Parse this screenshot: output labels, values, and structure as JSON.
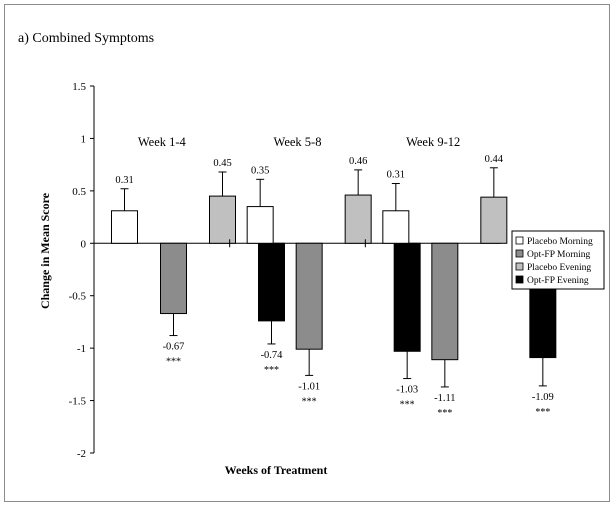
{
  "chart_data": {
    "type": "bar",
    "title": "a) Combined Symptoms",
    "xlabel": "Weeks of Treatment",
    "ylabel": "Change in Mean Score",
    "ylim": [
      -2,
      1.5
    ],
    "yticks": [
      "1.5",
      "1",
      "0.5",
      "0",
      "-0.5",
      "-1",
      "-1.5",
      "-2"
    ],
    "ytick_values": [
      1.5,
      1,
      0.5,
      0,
      -0.5,
      -1,
      -1.5,
      -2
    ],
    "categories": [
      "Week 1-4",
      "Week 5-8",
      "Week 9-12"
    ],
    "grid": false,
    "legend_position": "right",
    "series": [
      {
        "name": "Placebo Morning",
        "color": "#ffffff",
        "values": [
          0.31,
          0.35,
          0.31
        ],
        "value_labels": [
          "0.31",
          "0.35",
          "0.31"
        ],
        "error": [
          0.21,
          0.26,
          0.26
        ],
        "significance": [
          "",
          "",
          ""
        ]
      },
      {
        "name": "Opt-FP Morning",
        "color": "#8c8c8c",
        "values": [
          -0.67,
          -1.01,
          -1.11
        ],
        "value_labels": [
          "-0.67",
          "-1.01",
          "-1.11"
        ],
        "error": [
          0.21,
          0.25,
          0.26
        ],
        "significance": [
          "***",
          "***",
          "***"
        ]
      },
      {
        "name": "Placebo Evening",
        "color": "#c0c0c0",
        "values": [
          0.45,
          0.46,
          0.44
        ],
        "value_labels": [
          "0.45",
          "0.46",
          "0.44"
        ],
        "error": [
          0.23,
          0.24,
          0.28
        ],
        "significance": [
          "",
          "",
          ""
        ]
      },
      {
        "name": "Opt-FP Evening",
        "color": "#000000",
        "values": [
          -0.74,
          -1.03,
          -1.09
        ],
        "value_labels": [
          "-0.74",
          "-1.03",
          "-1.09"
        ],
        "error": [
          0.22,
          0.26,
          0.27
        ],
        "significance": [
          "***",
          "***",
          "***"
        ]
      }
    ]
  }
}
